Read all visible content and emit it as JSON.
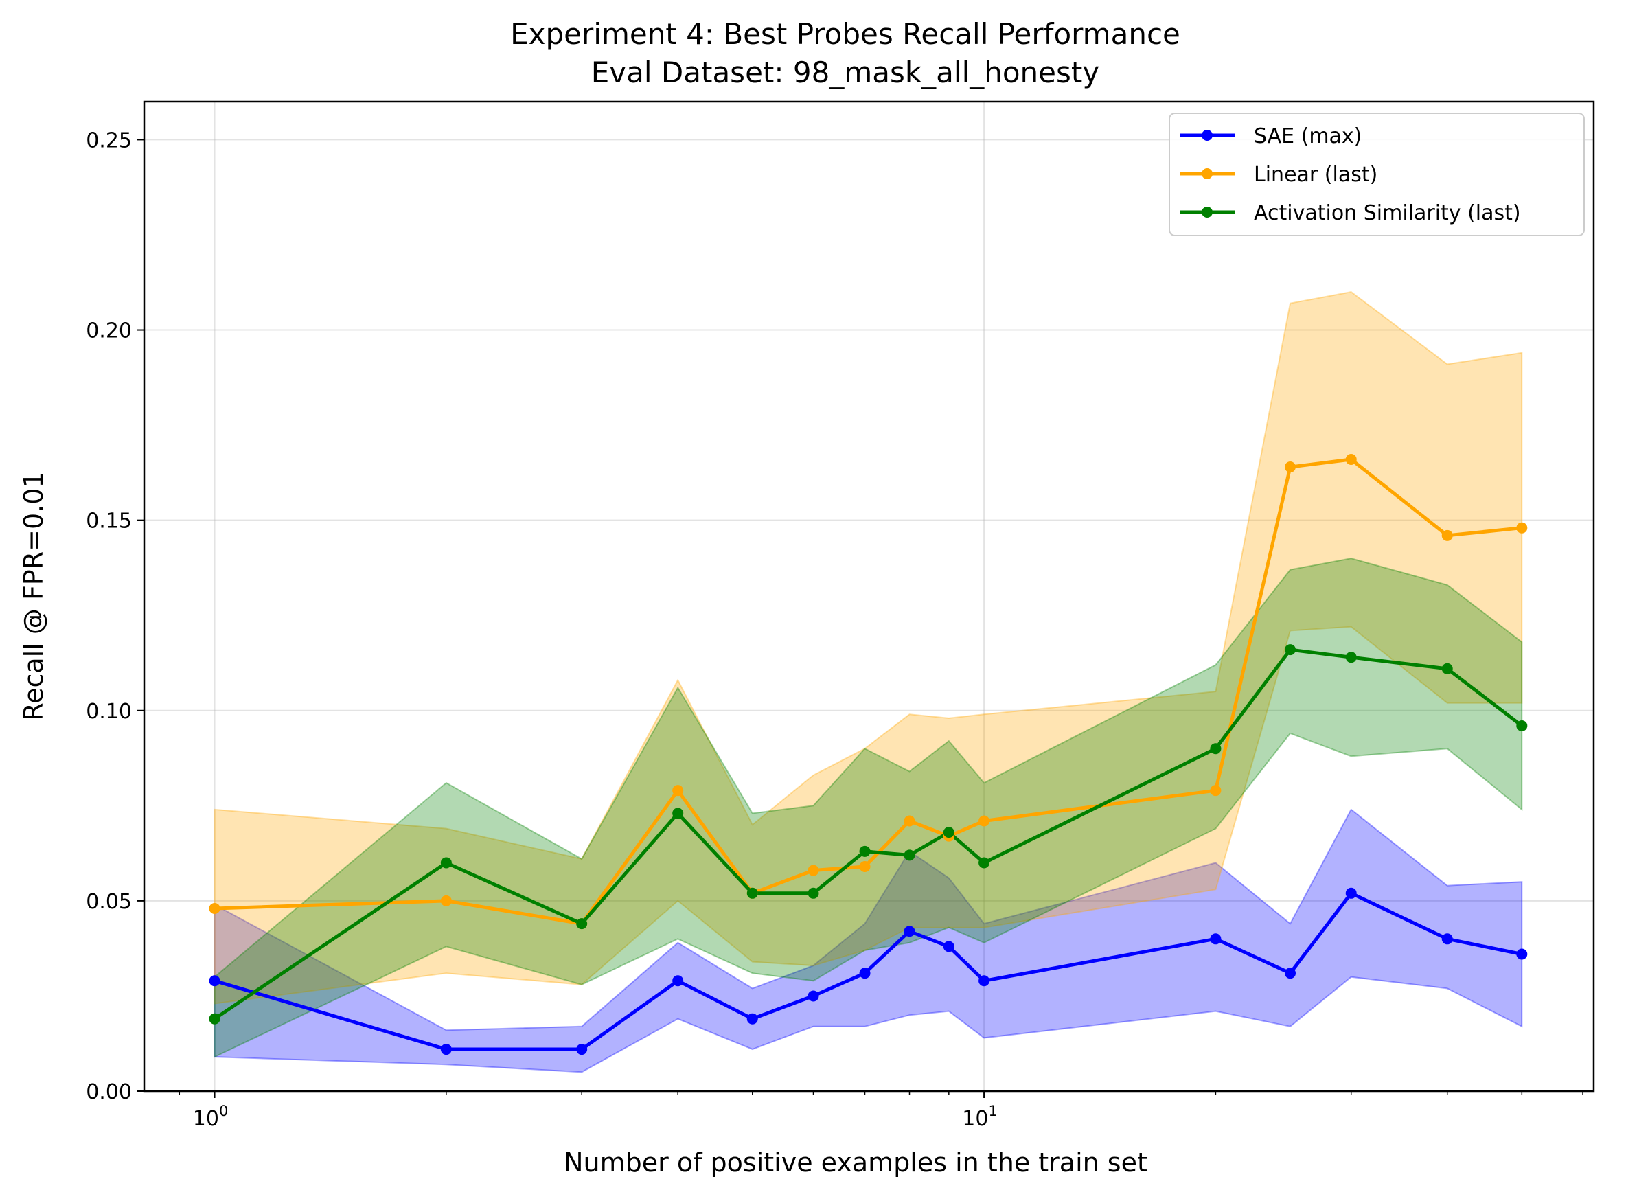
{
  "chart_data": {
    "type": "line",
    "title": "Experiment 4: Best Probes Recall Performance",
    "subtitle": "Eval Dataset: 98_mask_all_honesty",
    "xlabel": "Number of positive examples in the train set",
    "ylabel": "Recall @ FPR=0.01",
    "xscale": "log",
    "xlim": [
      0.81,
      62.0
    ],
    "ylim": [
      0.0,
      0.26
    ],
    "yticks": [
      "0.00",
      "0.05",
      "0.10",
      "0.15",
      "0.20",
      "0.25"
    ],
    "ytick_values": [
      0.0,
      0.05,
      0.1,
      0.15,
      0.2,
      0.25
    ],
    "xtick_major": [
      {
        "value": 1,
        "base": "10",
        "exp": "0"
      },
      {
        "value": 10,
        "base": "10",
        "exp": "1"
      }
    ],
    "grid": true,
    "legend_position": "top-right",
    "x": [
      1,
      2,
      3,
      4,
      5,
      6,
      7,
      8,
      9,
      10,
      20,
      25,
      30,
      40,
      50
    ],
    "series": [
      {
        "name": "SAE (max)",
        "color": "#0000ff",
        "values": [
          0.029,
          0.011,
          0.011,
          0.029,
          0.019,
          0.025,
          0.031,
          0.042,
          0.038,
          0.029,
          0.04,
          0.031,
          0.052,
          0.04,
          0.036
        ],
        "upper": [
          0.049,
          0.016,
          0.017,
          0.039,
          0.027,
          0.033,
          0.044,
          0.063,
          0.056,
          0.044,
          0.06,
          0.044,
          0.074,
          0.054,
          0.055
        ],
        "lower": [
          0.009,
          0.007,
          0.005,
          0.019,
          0.011,
          0.017,
          0.017,
          0.02,
          0.021,
          0.014,
          0.021,
          0.017,
          0.03,
          0.027,
          0.017
        ]
      },
      {
        "name": "Linear (last)",
        "color": "#ffa500",
        "values": [
          0.048,
          0.05,
          0.044,
          0.079,
          0.052,
          0.058,
          0.059,
          0.071,
          0.067,
          0.071,
          0.079,
          0.164,
          0.166,
          0.146,
          0.148
        ],
        "upper": [
          0.074,
          0.069,
          0.061,
          0.108,
          0.07,
          0.083,
          0.09,
          0.099,
          0.098,
          0.099,
          0.105,
          0.207,
          0.21,
          0.191,
          0.194
        ],
        "lower": [
          0.023,
          0.031,
          0.028,
          0.05,
          0.034,
          0.033,
          0.037,
          0.043,
          0.043,
          0.043,
          0.053,
          0.121,
          0.122,
          0.102,
          0.102
        ]
      },
      {
        "name": "Activation Similarity (last)",
        "color": "#008000",
        "values": [
          0.019,
          0.06,
          0.044,
          0.073,
          0.052,
          0.052,
          0.063,
          0.062,
          0.068,
          0.06,
          0.09,
          0.116,
          0.114,
          0.111,
          0.096
        ],
        "upper": [
          0.03,
          0.081,
          0.061,
          0.106,
          0.073,
          0.075,
          0.09,
          0.084,
          0.092,
          0.081,
          0.112,
          0.137,
          0.14,
          0.133,
          0.118
        ],
        "lower": [
          0.009,
          0.038,
          0.028,
          0.04,
          0.031,
          0.029,
          0.037,
          0.039,
          0.043,
          0.039,
          0.069,
          0.094,
          0.088,
          0.09,
          0.074
        ]
      }
    ]
  }
}
